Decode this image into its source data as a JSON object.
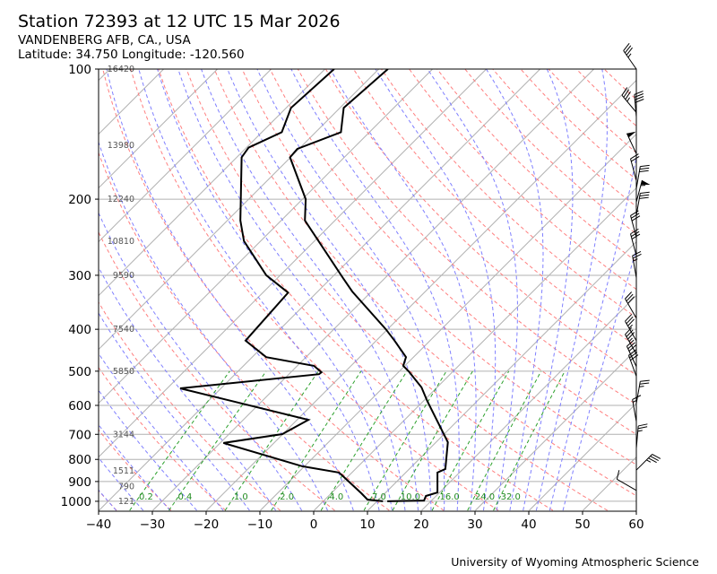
{
  "header": {
    "title": "Station 72393 at 12 UTC 15 Mar 2026",
    "location": "VANDENBERG AFB, CA., USA",
    "coords": "Latitude: 34.750 Longitude: -120.560"
  },
  "footer": "University of Wyoming Atmospheric Science",
  "colors": {
    "profile": "#000000",
    "isotherm": "#b0b0b0",
    "dry_adiabat": "#ff7f7f",
    "moist_adiabat": "#7f7fff",
    "mixing_ratio": "#2ca02c",
    "mixing_label": "#228b22",
    "height_label": "#555555"
  },
  "chart_data": {
    "type": "skewt",
    "xlabel": "",
    "ylabel": "",
    "xlim": [
      -40,
      60
    ],
    "ylim": [
      1050,
      100
    ],
    "y_scale": "log",
    "skew_degrees": 45,
    "grid": true,
    "x_ticks": [
      "-40",
      "-30",
      "-20",
      "-10",
      "0",
      "10",
      "20",
      "30",
      "40",
      "50",
      "60"
    ],
    "y_ticks": [
      "100",
      "200",
      "300",
      "400",
      "500",
      "600",
      "700",
      "800",
      "900",
      "1000"
    ],
    "temperature": [
      [
        1000,
        11.9
      ],
      [
        996,
        18.6
      ],
      [
        972,
        18.1
      ],
      [
        954,
        19.6
      ],
      [
        858,
        15.9
      ],
      [
        842,
        16.7
      ],
      [
        730,
        12.2
      ],
      [
        586,
        0.7
      ],
      [
        545,
        -2.9
      ],
      [
        500,
        -8.3
      ],
      [
        486,
        -10.3
      ],
      [
        464,
        -11.4
      ],
      [
        425,
        -16.6
      ],
      [
        400,
        -20.3
      ],
      [
        327,
        -33.6
      ],
      [
        304,
        -37.9
      ],
      [
        224,
        -55.6
      ],
      [
        200,
        -59.4
      ],
      [
        160,
        -70.1
      ],
      [
        153,
        -70.3
      ],
      [
        140,
        -65.3
      ],
      [
        123,
        -69.3
      ],
      [
        100,
        -68.3
      ]
    ],
    "dewpoint": [
      [
        1000,
        11.1
      ],
      [
        991,
        7.9
      ],
      [
        958,
        5.6
      ],
      [
        858,
        -2.4
      ],
      [
        830,
        -10.4
      ],
      [
        733,
        -29.4
      ],
      [
        699,
        -20.1
      ],
      [
        648,
        -17.9
      ],
      [
        548,
        -47.6
      ],
      [
        508,
        -24.4
      ],
      [
        503,
        -24.3
      ],
      [
        486,
        -26.9
      ],
      [
        464,
        -37.4
      ],
      [
        425,
        -44.3
      ],
      [
        329,
        -45.3
      ],
      [
        300,
        -52.6
      ],
      [
        250,
        -63.1
      ],
      [
        224,
        -67.6
      ],
      [
        160,
        -79.1
      ],
      [
        152,
        -79.6
      ],
      [
        140,
        -76.3
      ],
      [
        123,
        -79.1
      ],
      [
        100,
        -78.3
      ]
    ],
    "wind_barbs_kt": [
      {
        "p": 100,
        "dir": 325,
        "spd": 35
      },
      {
        "p": 126,
        "dir": 320,
        "spd": 35
      },
      {
        "p": 129,
        "dir": 355,
        "spd": 40
      },
      {
        "p": 157,
        "dir": 335,
        "spd": 50
      },
      {
        "p": 181,
        "dir": 345,
        "spd": 20
      },
      {
        "p": 189,
        "dir": 10,
        "spd": 30
      },
      {
        "p": 203,
        "dir": 15,
        "spd": 55
      },
      {
        "p": 218,
        "dir": 10,
        "spd": 30
      },
      {
        "p": 245,
        "dir": 345,
        "spd": 30
      },
      {
        "p": 270,
        "dir": 345,
        "spd": 30
      },
      {
        "p": 304,
        "dir": 350,
        "spd": 25
      },
      {
        "p": 377,
        "dir": 330,
        "spd": 30
      },
      {
        "p": 425,
        "dir": 330,
        "spd": 35
      },
      {
        "p": 456,
        "dir": 330,
        "spd": 35
      },
      {
        "p": 488,
        "dir": 335,
        "spd": 30
      },
      {
        "p": 514,
        "dir": 340,
        "spd": 30
      },
      {
        "p": 594,
        "dir": 10,
        "spd": 25
      },
      {
        "p": 654,
        "dir": 350,
        "spd": 15
      },
      {
        "p": 754,
        "dir": 5,
        "spd": 25
      },
      {
        "p": 847,
        "dir": 45,
        "spd": 35
      },
      {
        "p": 944,
        "dir": 300,
        "spd": 10
      }
    ],
    "height_labels": [
      {
        "p": 100,
        "text": "16420"
      },
      {
        "p": 150,
        "text": "13980"
      },
      {
        "p": 200,
        "text": "12240"
      },
      {
        "p": 250,
        "text": "10810"
      },
      {
        "p": 300,
        "text": "9590"
      },
      {
        "p": 400,
        "text": "7540"
      },
      {
        "p": 500,
        "text": "5850"
      },
      {
        "p": 700,
        "text": "3144"
      },
      {
        "p": 850,
        "text": "1511"
      },
      {
        "p": 925,
        "text": "790"
      },
      {
        "p": 1000,
        "text": "121"
      }
    ],
    "mixing_ratios_gkg": [
      {
        "w": 0.2,
        "text": "0.2"
      },
      {
        "w": 0.4,
        "text": "0.4"
      },
      {
        "w": 1.0,
        "text": "1.0"
      },
      {
        "w": 2.0,
        "text": "2.0"
      },
      {
        "w": 4.0,
        "text": "4.0"
      },
      {
        "w": 7.0,
        "text": "7.0"
      },
      {
        "w": 10.0,
        "text": "10.0"
      },
      {
        "w": 16.0,
        "text": "16.0"
      },
      {
        "w": 24.0,
        "text": "24.0"
      },
      {
        "w": 32.0,
        "text": "32.0"
      }
    ]
  }
}
